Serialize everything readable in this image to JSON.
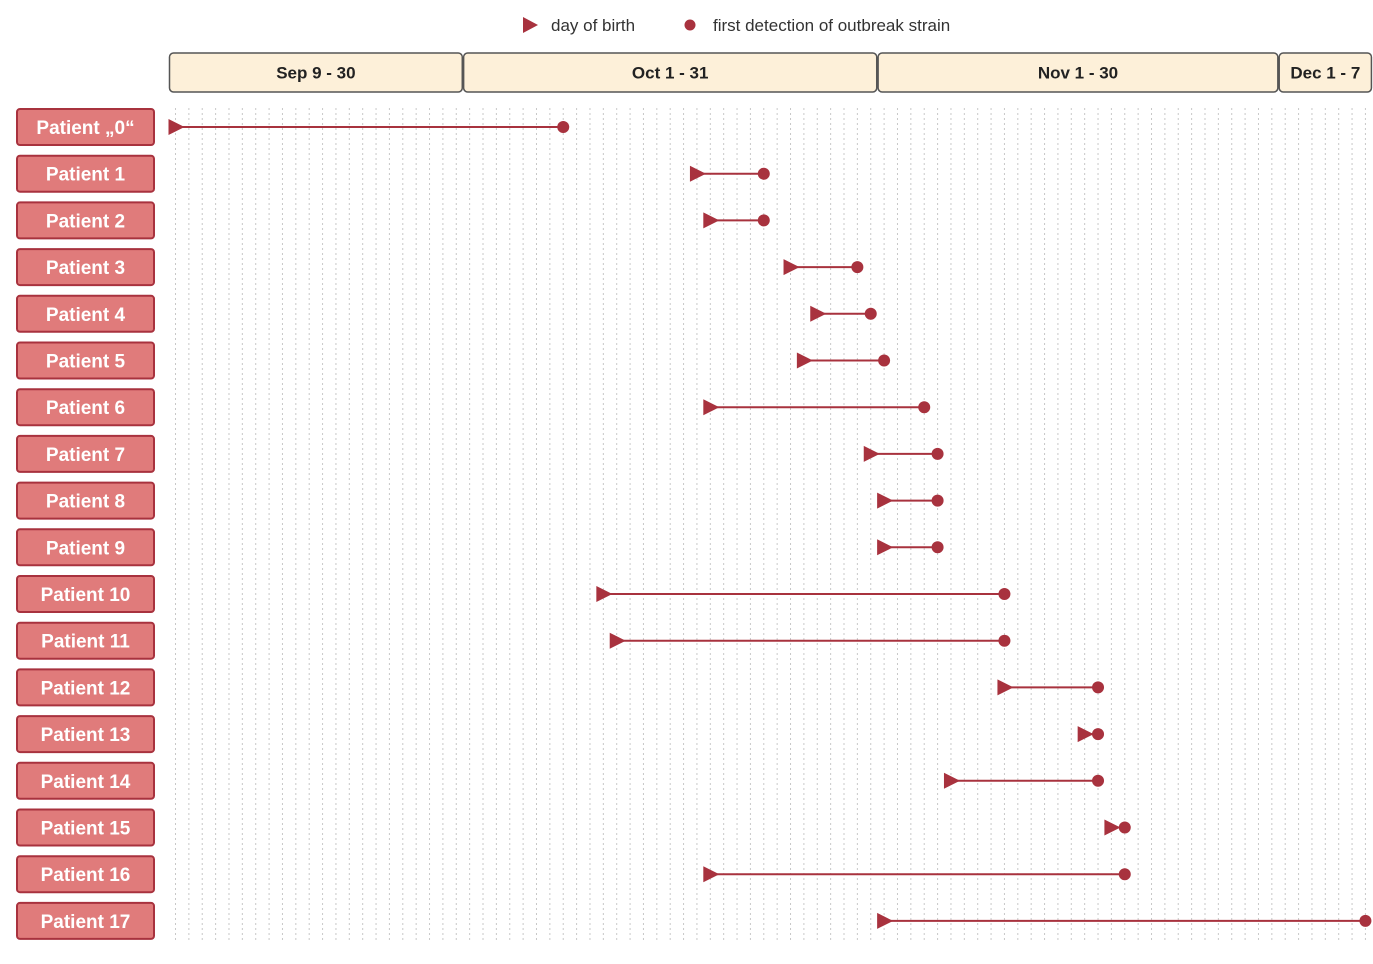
{
  "chart_data": {
    "type": "timeline",
    "legend": {
      "placement": "top-center",
      "entries": [
        {
          "marker": "triangle",
          "label": "day of birth"
        },
        {
          "marker": "circle",
          "label": "first detection of outbreak strain"
        }
      ]
    },
    "periods": [
      {
        "label": "Sep 9 - 30",
        "start": "09-09",
        "end": "09-30"
      },
      {
        "label": "Oct 1 - 31",
        "start": "10-01",
        "end": "10-31"
      },
      {
        "label": "Nov 1 - 30",
        "start": "11-01",
        "end": "11-30"
      },
      {
        "label": "Dec 1 - 7",
        "start": "12-01",
        "end": "12-07"
      }
    ],
    "gridlines": "daily, dotted",
    "patients": [
      {
        "label": "Patient „0“",
        "birth": "09-09",
        "detection": "10-08"
      },
      {
        "label": "Patient 1",
        "birth": "10-18",
        "detection": "10-23"
      },
      {
        "label": "Patient 2",
        "birth": "10-19",
        "detection": "10-23"
      },
      {
        "label": "Patient 3",
        "birth": "10-25",
        "detection": "10-30"
      },
      {
        "label": "Patient 4",
        "birth": "10-27",
        "detection": "10-31"
      },
      {
        "label": "Patient 5",
        "birth": "10-26",
        "detection": "11-01"
      },
      {
        "label": "Patient 6",
        "birth": "10-19",
        "detection": "11-04"
      },
      {
        "label": "Patient 7",
        "birth": "10-31",
        "detection": "11-05"
      },
      {
        "label": "Patient 8",
        "birth": "11-01",
        "detection": "11-05"
      },
      {
        "label": "Patient 9",
        "birth": "11-01",
        "detection": "11-05"
      },
      {
        "label": "Patient 10",
        "birth": "10-11",
        "detection": "11-10"
      },
      {
        "label": "Patient 11",
        "birth": "10-12",
        "detection": "11-10"
      },
      {
        "label": "Patient 12",
        "birth": "11-10",
        "detection": "11-17"
      },
      {
        "label": "Patient 13",
        "birth": "11-16",
        "detection": "11-17"
      },
      {
        "label": "Patient 14",
        "birth": "11-06",
        "detection": "11-17"
      },
      {
        "label": "Patient 15",
        "birth": "11-18",
        "detection": "11-19"
      },
      {
        "label": "Patient 16",
        "birth": "10-19",
        "detection": "11-19"
      },
      {
        "label": "Patient 17",
        "birth": "11-01",
        "detection": "12-07"
      }
    ]
  },
  "colors": {
    "marker": "#a8323e",
    "label_fill": "#e07b7b",
    "label_border": "#a8323e",
    "label_text": "#ffffff",
    "period_fill": "#fdf0d9",
    "period_border": "#555555",
    "grid": "#c8c8c8"
  }
}
